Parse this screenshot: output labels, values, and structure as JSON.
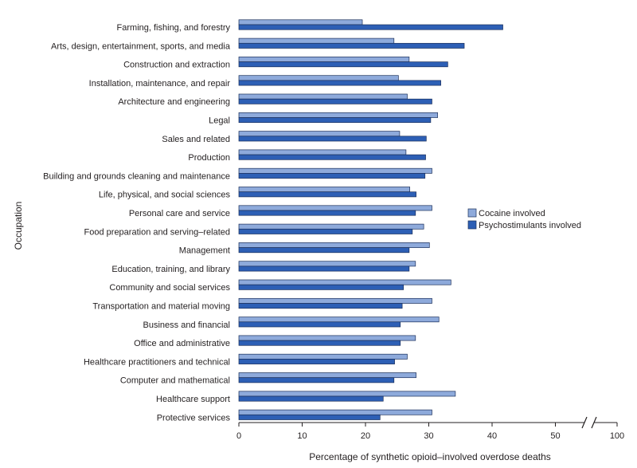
{
  "chart_data": {
    "type": "bar",
    "orientation": "horizontal",
    "xlabel": "Percentage of synthetic opioid–involved overdose deaths",
    "ylabel": "Occupation",
    "xticks": [
      "0",
      "10",
      "20",
      "30",
      "40",
      "50",
      "100"
    ],
    "xlim": [
      0,
      100
    ],
    "axis_break": "between 50 and 100",
    "legend_position": "right",
    "categories": [
      "Farming, fishing, and forestry",
      "Arts, design, entertainment, sports, and media",
      "Construction and extraction",
      "Installation, maintenance, and repair",
      "Architecture and engineering",
      "Legal",
      "Sales and related",
      "Production",
      "Building and grounds cleaning and maintenance",
      "Life, physical, and social sciences",
      "Personal care and service",
      "Food preparation and serving–related",
      "Management",
      "Education, training, and library",
      "Community and social services",
      "Transportation and material moving",
      "Business and financial",
      "Office and administrative",
      "Healthcare practitioners and technical",
      "Computer and mathematical",
      "Healthcare support",
      "Protective services"
    ],
    "series": [
      {
        "name": "Cocaine involved",
        "color": "#8eaadb",
        "values": [
          19.5,
          24.5,
          26.9,
          25.2,
          26.6,
          31.4,
          25.4,
          26.4,
          30.5,
          27.0,
          30.5,
          29.2,
          30.1,
          27.9,
          33.5,
          30.5,
          31.6,
          27.9,
          26.6,
          28.0,
          34.2,
          30.5
        ]
      },
      {
        "name": "Psychostimulants involved",
        "color": "#2d5fb5",
        "values": [
          41.7,
          35.6,
          33.0,
          31.9,
          30.5,
          30.3,
          29.6,
          29.5,
          29.4,
          28.0,
          27.9,
          27.4,
          26.9,
          26.9,
          26.0,
          25.8,
          25.5,
          25.5,
          24.6,
          24.5,
          22.8,
          22.3
        ]
      }
    ]
  }
}
